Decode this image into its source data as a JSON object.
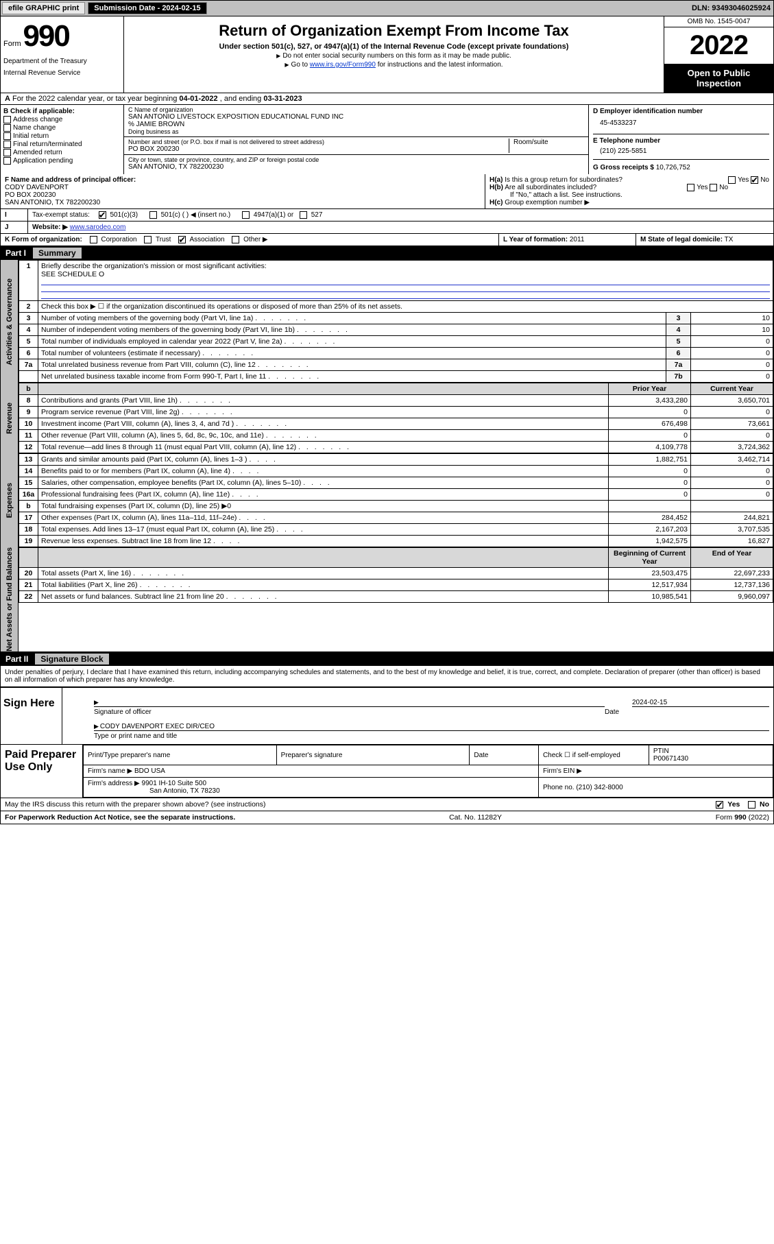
{
  "topbar": {
    "efile": "efile GRAPHIC print",
    "submission_label": "Submission Date - 2024-02-15",
    "dln_label": "DLN: 93493046025924"
  },
  "header": {
    "form_prefix": "Form",
    "form_num": "990",
    "dept": "Department of the Treasury",
    "irs": "Internal Revenue Service",
    "main_title": "Return of Organization Exempt From Income Tax",
    "sub1": "Under section 501(c), 527, or 4947(a)(1) of the Internal Revenue Code (except private foundations)",
    "sub2": "Do not enter social security numbers on this form as it may be made public.",
    "sub3_pre": "Go to ",
    "sub3_link": "www.irs.gov/Form990",
    "sub3_post": " for instructions and the latest information.",
    "omb": "OMB No. 1545-0047",
    "year": "2022",
    "open": "Open to Public Inspection"
  },
  "rowA": {
    "text_pre": "For the 2022 calendar year, or tax year beginning ",
    "begin": "04-01-2022",
    "mid": " , and ending ",
    "end": "03-31-2023"
  },
  "B": {
    "label": "B Check if applicable:",
    "opts": [
      "Address change",
      "Name change",
      "Initial return",
      "Final return/terminated",
      "Amended return",
      "Application pending"
    ]
  },
  "C": {
    "name_lbl": "C Name of organization",
    "name": "SAN ANTONIO LIVESTOCK EXPOSITION EDUCATIONAL FUND INC",
    "care": "% JAMIE BROWN",
    "dba_lbl": "Doing business as",
    "addr_lbl": "Number and street (or P.O. box if mail is not delivered to street address)",
    "room_lbl": "Room/suite",
    "addr": "PO BOX 200230",
    "city_lbl": "City or town, state or province, country, and ZIP or foreign postal code",
    "city": "SAN ANTONIO, TX  782200230"
  },
  "D": {
    "lbl": "D Employer identification number",
    "val": "45-4533237"
  },
  "E": {
    "lbl": "E Telephone number",
    "val": "(210) 225-5851"
  },
  "G": {
    "lbl": "G Gross receipts $",
    "val": "10,726,752"
  },
  "F": {
    "lbl": "F Name and address of principal officer:",
    "name": "CODY DAVENPORT",
    "addr1": "PO BOX 200230",
    "addr2": "SAN ANTONIO, TX  782200230"
  },
  "H": {
    "a": "Is this a group return for subordinates?",
    "b": "Are all subordinates included?",
    "b_note": "If \"No,\" attach a list. See instructions.",
    "c": "Group exemption number ▶",
    "yes": "Yes",
    "no": "No"
  },
  "I": {
    "lbl": "Tax-exempt status:",
    "o1": "501(c)(3)",
    "o2": "501(c) (  ) ◀ (insert no.)",
    "o3": "4947(a)(1) or",
    "o4": "527"
  },
  "J": {
    "lbl": "Website: ▶",
    "val": "www.sarodeo.com"
  },
  "K": {
    "lbl": "K Form of organization:",
    "opts": [
      "Corporation",
      "Trust",
      "Association",
      "Other ▶"
    ],
    "checked": 2
  },
  "L": {
    "lbl": "L Year of formation:",
    "val": "2011"
  },
  "M": {
    "lbl": "M State of legal domicile:",
    "val": "TX"
  },
  "partI": {
    "hdr": "Part I",
    "title": "Summary",
    "l1_lbl": "Briefly describe the organization's mission or most significant activities:",
    "l1_val": "SEE SCHEDULE O",
    "l2": "Check this box ▶ ☐  if the organization discontinued its operations or disposed of more than 25% of its net assets.",
    "side_gov": "Activities & Governance",
    "side_rev": "Revenue",
    "side_exp": "Expenses",
    "side_net": "Net Assets or Fund Balances",
    "rows_gov": [
      {
        "n": "3",
        "t": "Number of voting members of the governing body (Part VI, line 1a)",
        "i": "3",
        "v": "10"
      },
      {
        "n": "4",
        "t": "Number of independent voting members of the governing body (Part VI, line 1b)",
        "i": "4",
        "v": "10"
      },
      {
        "n": "5",
        "t": "Total number of individuals employed in calendar year 2022 (Part V, line 2a)",
        "i": "5",
        "v": "0"
      },
      {
        "n": "6",
        "t": "Total number of volunteers (estimate if necessary)",
        "i": "6",
        "v": "0"
      },
      {
        "n": "7a",
        "t": "Total unrelated business revenue from Part VIII, column (C), line 12",
        "i": "7a",
        "v": "0"
      },
      {
        "n": "",
        "t": "Net unrelated business taxable income from Form 990-T, Part I, line 11",
        "i": "7b",
        "v": "0"
      }
    ],
    "col_hdrs": {
      "prior": "Prior Year",
      "current": "Current Year"
    },
    "rows_rev": [
      {
        "n": "8",
        "t": "Contributions and grants (Part VIII, line 1h)",
        "p": "3,433,280",
        "c": "3,650,701"
      },
      {
        "n": "9",
        "t": "Program service revenue (Part VIII, line 2g)",
        "p": "0",
        "c": "0"
      },
      {
        "n": "10",
        "t": "Investment income (Part VIII, column (A), lines 3, 4, and 7d )",
        "p": "676,498",
        "c": "73,661"
      },
      {
        "n": "11",
        "t": "Other revenue (Part VIII, column (A), lines 5, 6d, 8c, 9c, 10c, and 11e)",
        "p": "0",
        "c": "0"
      },
      {
        "n": "12",
        "t": "Total revenue—add lines 8 through 11 (must equal Part VIII, column (A), line 12)",
        "p": "4,109,778",
        "c": "3,724,362"
      }
    ],
    "rows_exp": [
      {
        "n": "13",
        "t": "Grants and similar amounts paid (Part IX, column (A), lines 1–3 )",
        "p": "1,882,751",
        "c": "3,462,714"
      },
      {
        "n": "14",
        "t": "Benefits paid to or for members (Part IX, column (A), line 4)",
        "p": "0",
        "c": "0"
      },
      {
        "n": "15",
        "t": "Salaries, other compensation, employee benefits (Part IX, column (A), lines 5–10)",
        "p": "0",
        "c": "0"
      },
      {
        "n": "16a",
        "t": "Professional fundraising fees (Part IX, column (A), line 11e)",
        "p": "0",
        "c": "0"
      },
      {
        "n": "b",
        "t": "Total fundraising expenses (Part IX, column (D), line 25) ▶0",
        "p": "",
        "c": "",
        "shade": true
      },
      {
        "n": "17",
        "t": "Other expenses (Part IX, column (A), lines 11a–11d, 11f–24e)",
        "p": "284,452",
        "c": "244,821"
      },
      {
        "n": "18",
        "t": "Total expenses. Add lines 13–17 (must equal Part IX, column (A), line 25)",
        "p": "2,167,203",
        "c": "3,707,535"
      },
      {
        "n": "19",
        "t": "Revenue less expenses. Subtract line 18 from line 12",
        "p": "1,942,575",
        "c": "16,827"
      }
    ],
    "net_hdrs": {
      "b": "Beginning of Current Year",
      "e": "End of Year"
    },
    "rows_net": [
      {
        "n": "20",
        "t": "Total assets (Part X, line 16)",
        "p": "23,503,475",
        "c": "22,697,233"
      },
      {
        "n": "21",
        "t": "Total liabilities (Part X, line 26)",
        "p": "12,517,934",
        "c": "12,737,136"
      },
      {
        "n": "22",
        "t": "Net assets or fund balances. Subtract line 21 from line 20",
        "p": "10,985,541",
        "c": "9,960,097"
      }
    ]
  },
  "partII": {
    "hdr": "Part II",
    "title": "Signature Block",
    "decl": "Under penalties of perjury, I declare that I have examined this return, including accompanying schedules and statements, and to the best of my knowledge and belief, it is true, correct, and complete. Declaration of preparer (other than officer) is based on all information of which preparer has any knowledge.",
    "sign_here": "Sign Here",
    "sig_officer": "Signature of officer",
    "date_lbl": "Date",
    "date_val": "2024-02-15",
    "name_title": "CODY DAVENPORT  EXEC DIR/CEO",
    "type_name": "Type or print name and title",
    "paid": "Paid Preparer Use Only",
    "cols": {
      "a": "Print/Type preparer's name",
      "b": "Preparer's signature",
      "c": "Date",
      "d": "Check ☐ if self-employed",
      "e": "PTIN"
    },
    "ptin": "P00671430",
    "firm_name_lbl": "Firm's name  ▶",
    "firm_name": "BDO USA",
    "firm_ein_lbl": "Firm's EIN ▶",
    "firm_addr_lbl": "Firm's address ▶",
    "firm_addr": "9901 IH-10 Suite 500",
    "firm_city": "San Antonio, TX  78230",
    "phone_lbl": "Phone no.",
    "phone": "(210) 342-8000",
    "discuss": "May the IRS discuss this return with the preparer shown above? (see instructions)",
    "yes": "Yes",
    "no": "No"
  },
  "footer": {
    "pra": "For Paperwork Reduction Act Notice, see the separate instructions.",
    "cat": "Cat. No. 11282Y",
    "form": "Form 990 (2022)"
  },
  "colors": {
    "topbar_bg": "#c0c0c0",
    "black": "#000000",
    "link": "#2233cc",
    "shade": "#e8e8e8"
  }
}
